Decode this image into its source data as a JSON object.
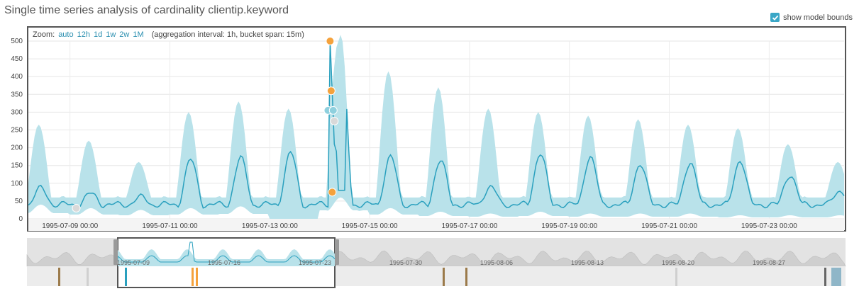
{
  "header": {
    "title": "Single time series analysis of cardinality clientip.keyword",
    "toggle_label": "show model bounds",
    "toggle_checked": true
  },
  "zoom": {
    "label": "Zoom:",
    "options": [
      "auto",
      "12h",
      "1d",
      "1w",
      "2w",
      "1M"
    ],
    "info": "(aggregation interval: 1h, bucket span: 15m)"
  },
  "colors": {
    "bounds": "#b9e2ea",
    "line": "#2aa0be",
    "anomaly_major": "#f5a23c",
    "anomaly_minor": "#8fd0de",
    "anomaly_low": "#d9d9d9"
  },
  "chart_data": {
    "type": "area",
    "xlabel": "",
    "ylabel": "",
    "ylim": [
      0,
      500
    ],
    "y_ticks": [
      0,
      50,
      100,
      150,
      200,
      250,
      300,
      350,
      400,
      450,
      500
    ],
    "x_ticks": [
      "1995-07-09 00:00",
      "1995-07-11 00:00",
      "1995-07-13 00:00",
      "1995-07-15 00:00",
      "1995-07-17 00:00",
      "1995-07-19 00:00",
      "1995-07-21 00:00",
      "1995-07-23 00:00"
    ],
    "x_range": [
      "1995-07-08T04:00",
      "1995-07-24T12:00"
    ],
    "grid": true,
    "series": [
      {
        "values_description": "daily cycle of actual values"
      }
    ],
    "daily_peaks": [
      {
        "date": "1995-07-08",
        "actual": 85,
        "upper": 265,
        "lower": 40
      },
      {
        "date": "1995-07-09",
        "actual": 70,
        "upper": 220,
        "lower": 30
      },
      {
        "date": "1995-07-10",
        "actual": 60,
        "upper": 160,
        "lower": 25
      },
      {
        "date": "1995-07-11",
        "actual": 165,
        "upper": 300,
        "lower": 30
      },
      {
        "date": "1995-07-12",
        "actual": 170,
        "upper": 330,
        "lower": 35
      },
      {
        "date": "1995-07-13",
        "actual": 185,
        "upper": 310,
        "lower": 0
      },
      {
        "date": "1995-07-14",
        "actual": 500,
        "upper": 500,
        "lower": 60
      },
      {
        "date": "1995-07-15",
        "actual": 175,
        "upper": 415,
        "lower": 30
      },
      {
        "date": "1995-07-16",
        "actual": 165,
        "upper": 370,
        "lower": 20
      },
      {
        "date": "1995-07-17",
        "actual": 90,
        "upper": 310,
        "lower": 15
      },
      {
        "date": "1995-07-18",
        "actual": 185,
        "upper": 300,
        "lower": 20
      },
      {
        "date": "1995-07-19",
        "actual": 175,
        "upper": 290,
        "lower": 15
      },
      {
        "date": "1995-07-20",
        "actual": 155,
        "upper": 280,
        "lower": 15
      },
      {
        "date": "1995-07-21",
        "actual": 160,
        "upper": 265,
        "lower": 15
      },
      {
        "date": "1995-07-22",
        "actual": 165,
        "upper": 255,
        "lower": 10
      },
      {
        "date": "1995-07-23",
        "actual": 125,
        "upper": 210,
        "lower": 10
      },
      {
        "date": "1995-07-24",
        "actual": 80,
        "upper": 160,
        "lower": 10
      }
    ],
    "anomalies": [
      {
        "time": "1995-07-09T03:00",
        "value": 30,
        "severity": "low"
      },
      {
        "time": "1995-07-14T05:00",
        "value": 500,
        "severity": "major"
      },
      {
        "time": "1995-07-14T05:30",
        "value": 360,
        "severity": "major"
      },
      {
        "time": "1995-07-14T04:00",
        "value": 305,
        "severity": "minor"
      },
      {
        "time": "1995-07-14T06:30",
        "value": 305,
        "severity": "minor"
      },
      {
        "time": "1995-07-14T07:00",
        "value": 275,
        "severity": "low"
      },
      {
        "time": "1995-07-14T06:00",
        "value": 75,
        "severity": "major"
      }
    ]
  },
  "context": {
    "x_labels": [
      "1995-07-09",
      "1995-07-16",
      "1995-07-23",
      "1995-07-30",
      "1995-08-06",
      "1995-08-13",
      "1995-08-20",
      "1995-08-27"
    ]
  }
}
